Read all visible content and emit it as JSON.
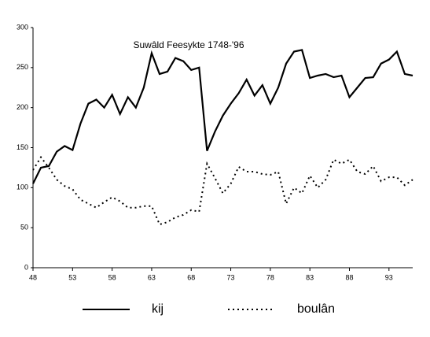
{
  "chart_data": {
    "type": "line",
    "annotation": "Suwâld Feesykte 1748-'96",
    "x": [
      48,
      49,
      50,
      51,
      52,
      53,
      54,
      55,
      56,
      57,
      58,
      59,
      60,
      61,
      62,
      63,
      64,
      65,
      66,
      67,
      68,
      69,
      70,
      71,
      72,
      73,
      74,
      75,
      76,
      77,
      78,
      79,
      80,
      81,
      82,
      83,
      84,
      85,
      86,
      87,
      88,
      89,
      90,
      91,
      92,
      93,
      94,
      95,
      96
    ],
    "series": [
      {
        "name": "kij",
        "color": "#000000",
        "linestyle": "solid",
        "values": [
          105,
          125,
          127,
          145,
          152,
          147,
          180,
          205,
          210,
          200,
          216,
          192,
          213,
          200,
          225,
          268,
          242,
          245,
          262,
          258,
          247,
          250,
          146,
          170,
          190,
          205,
          218,
          235,
          215,
          228,
          205,
          225,
          255,
          270,
          272,
          237,
          240,
          242,
          238,
          240,
          213,
          225,
          237,
          238,
          255,
          260,
          270,
          242,
          240
        ]
      },
      {
        "name": "boulân",
        "color": "#000000",
        "linestyle": "dotted",
        "values": [
          122,
          138,
          125,
          110,
          102,
          98,
          85,
          80,
          75,
          82,
          88,
          83,
          75,
          75,
          77,
          77,
          54,
          57,
          63,
          66,
          72,
          70,
          130,
          112,
          93,
          105,
          126,
          120,
          120,
          117,
          116,
          120,
          80,
          100,
          93,
          115,
          100,
          110,
          135,
          130,
          135,
          120,
          117,
          127,
          108,
          113,
          113,
          103,
          110
        ]
      }
    ],
    "xlim": [
      48,
      96
    ],
    "xticks": [
      48,
      53,
      58,
      63,
      68,
      73,
      78,
      83,
      88,
      93
    ],
    "ylim": [
      0,
      300
    ],
    "yticks": [
      0,
      50,
      100,
      150,
      200,
      250,
      300
    ],
    "grid": false
  }
}
